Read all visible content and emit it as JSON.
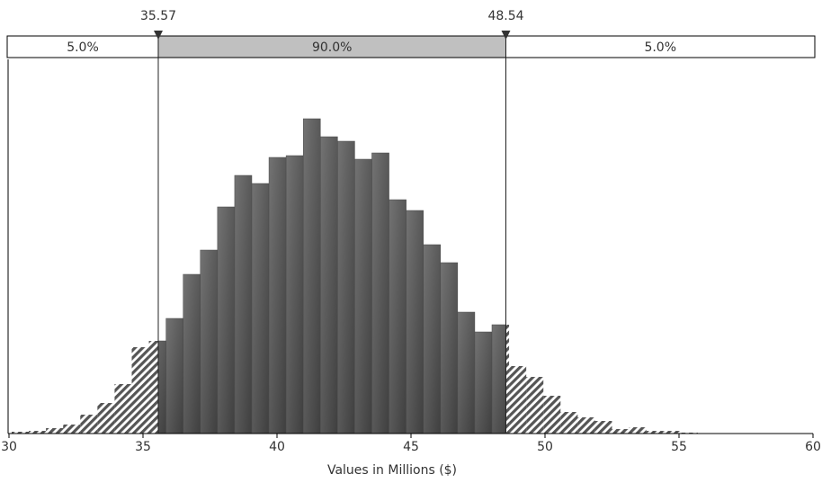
{
  "chart_data": {
    "type": "histogram",
    "xlabel": "Values in Millions ($)",
    "xlim": [
      30,
      60
    ],
    "xticks": [
      30,
      35,
      40,
      45,
      50,
      55,
      60
    ],
    "bins": [
      30.1,
      30.74,
      31.38,
      32.02,
      32.66,
      33.3,
      33.94,
      34.58,
      35.22,
      35.86,
      36.5,
      37.14,
      37.78,
      38.42,
      39.06,
      39.7,
      40.34,
      40.98,
      41.62,
      42.26,
      42.9,
      43.54,
      44.18,
      44.82,
      45.46,
      46.1,
      46.74,
      47.38,
      48.02,
      48.66,
      49.3,
      49.94,
      50.58,
      51.22,
      51.86,
      52.5,
      53.14,
      53.78,
      54.42,
      55.06,
      55.7
    ],
    "counts": [
      2,
      3,
      6,
      10,
      21,
      34,
      55,
      96,
      103,
      128,
      177,
      204,
      252,
      287,
      278,
      307,
      309,
      350,
      330,
      325,
      305,
      312,
      260,
      248,
      210,
      190,
      135,
      113,
      121,
      75,
      63,
      42,
      24,
      18,
      14,
      5,
      7,
      3,
      3,
      1
    ],
    "color": "#555555",
    "markers": [
      35.57,
      48.54
    ],
    "probability_bar": {
      "values": [
        5,
        90,
        5
      ],
      "value_labels": [
        "5.0%",
        "90.0%",
        "5.0%"
      ]
    }
  }
}
